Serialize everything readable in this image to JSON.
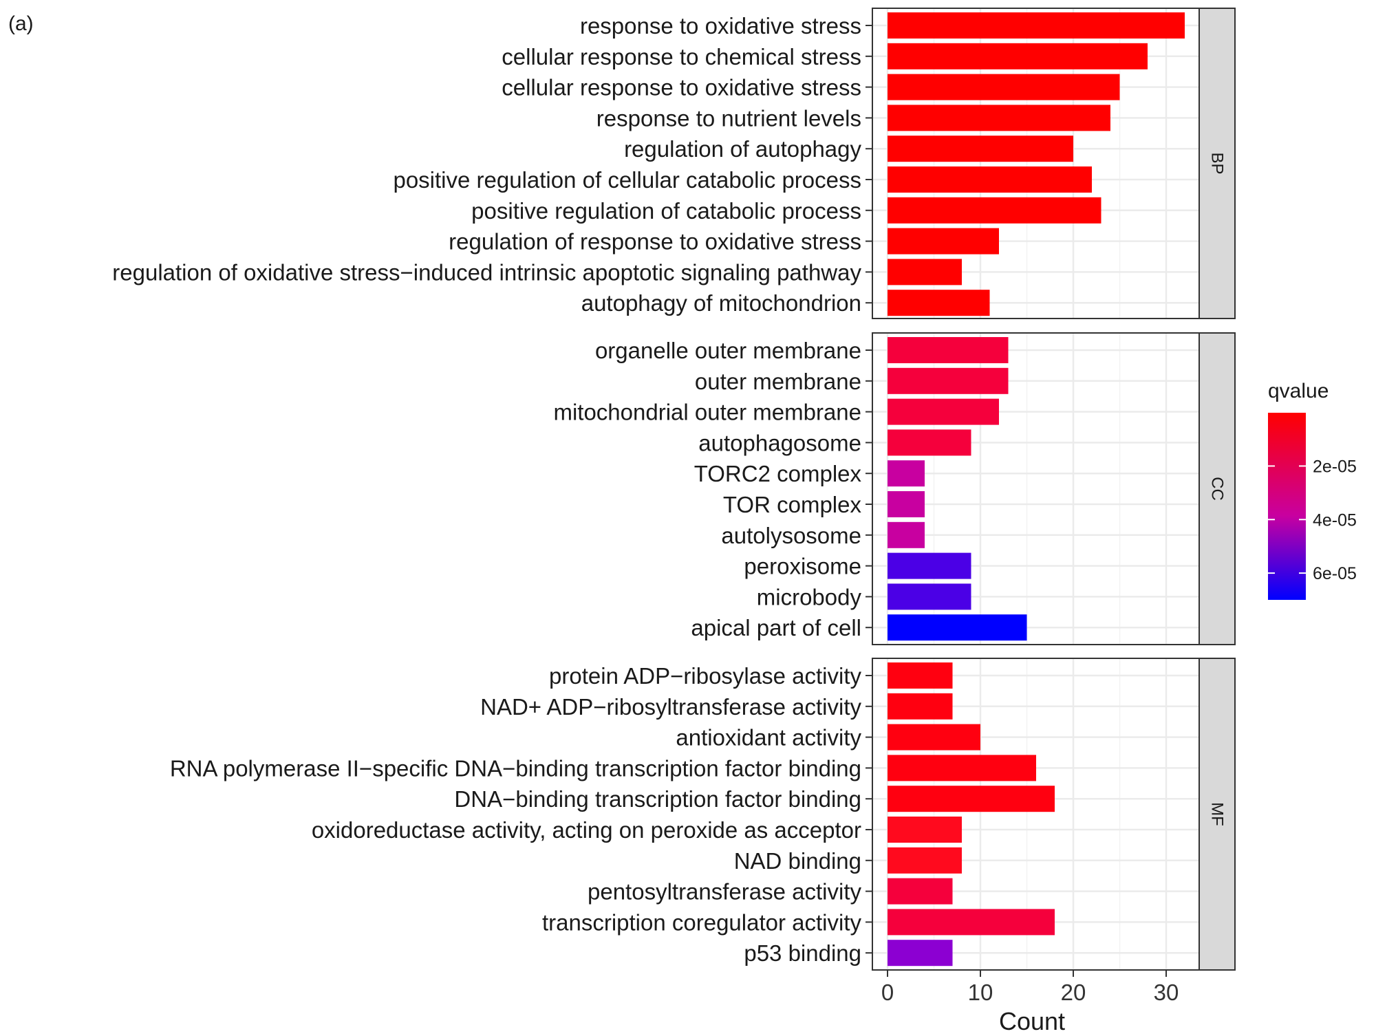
{
  "chart_data": {
    "type": "bar",
    "orientation": "horizontal",
    "panel_label": "(a)",
    "xlabel": "Count",
    "xlim": [
      0,
      35
    ],
    "x_ticks": [
      0,
      10,
      20,
      30
    ],
    "grid": true,
    "legend": {
      "title": "qvalue",
      "position": "right",
      "ticks": [
        "2e-05",
        "4e-05",
        "6e-05"
      ],
      "tick_values": [
        2e-05,
        4e-05,
        6e-05
      ],
      "range": [
        1e-07,
        7e-05
      ],
      "low_color": "#ff0000",
      "high_color": "#0000ff"
    },
    "facets": [
      {
        "name": "BP",
        "terms": [
          {
            "label": "response to oxidative stress",
            "count": 32,
            "color": "#ff0000"
          },
          {
            "label": "cellular response to chemical stress",
            "count": 28,
            "color": "#ff0000"
          },
          {
            "label": "cellular response to oxidative stress",
            "count": 25,
            "color": "#ff0000"
          },
          {
            "label": "response to nutrient levels",
            "count": 24,
            "color": "#ff0000"
          },
          {
            "label": "regulation of autophagy",
            "count": 20,
            "color": "#ff0000"
          },
          {
            "label": "positive regulation of cellular catabolic process",
            "count": 22,
            "color": "#ff0000"
          },
          {
            "label": "positive regulation of catabolic process",
            "count": 23,
            "color": "#ff0000"
          },
          {
            "label": "regulation of response to oxidative stress",
            "count": 12,
            "color": "#ff0000"
          },
          {
            "label": "regulation of oxidative stress−induced intrinsic apoptotic signaling pathway",
            "count": 8,
            "color": "#ff0000"
          },
          {
            "label": "autophagy of mitochondrion",
            "count": 11,
            "color": "#ff0000"
          }
        ]
      },
      {
        "name": "CC",
        "terms": [
          {
            "label": "organelle outer membrane",
            "count": 13,
            "color": "#f5003c"
          },
          {
            "label": "outer membrane",
            "count": 13,
            "color": "#f5003c"
          },
          {
            "label": "mitochondrial outer membrane",
            "count": 12,
            "color": "#f5003c"
          },
          {
            "label": "autophagosome",
            "count": 9,
            "color": "#f5003c"
          },
          {
            "label": "TORC2 complex",
            "count": 4,
            "color": "#c800a0"
          },
          {
            "label": "TOR complex",
            "count": 4,
            "color": "#c800a0"
          },
          {
            "label": "autolysosome",
            "count": 4,
            "color": "#c800a0"
          },
          {
            "label": "peroxisome",
            "count": 9,
            "color": "#4b00e6"
          },
          {
            "label": "microbody",
            "count": 9,
            "color": "#4b00e6"
          },
          {
            "label": "apical part of cell",
            "count": 15,
            "color": "#0000ff"
          }
        ]
      },
      {
        "name": "MF",
        "terms": [
          {
            "label": "protein ADP−ribosylase activity",
            "count": 7,
            "color": "#ff0010"
          },
          {
            "label": "NAD+ ADP−ribosyltransferase activity",
            "count": 7,
            "color": "#ff0010"
          },
          {
            "label": "antioxidant activity",
            "count": 10,
            "color": "#ff0010"
          },
          {
            "label": "RNA polymerase II−specific DNA−binding transcription factor binding",
            "count": 16,
            "color": "#ff0010"
          },
          {
            "label": "DNA−binding transcription factor binding",
            "count": 18,
            "color": "#ff0010"
          },
          {
            "label": "oxidoreductase activity, acting on peroxide as acceptor",
            "count": 8,
            "color": "#ff0a1e"
          },
          {
            "label": "NAD binding",
            "count": 8,
            "color": "#ff0a1e"
          },
          {
            "label": "pentosyltransferase activity",
            "count": 7,
            "color": "#f5003c"
          },
          {
            "label": "transcription coregulator activity",
            "count": 18,
            "color": "#f5003c"
          },
          {
            "label": "p53 binding",
            "count": 7,
            "color": "#8c00d2"
          }
        ]
      }
    ]
  }
}
